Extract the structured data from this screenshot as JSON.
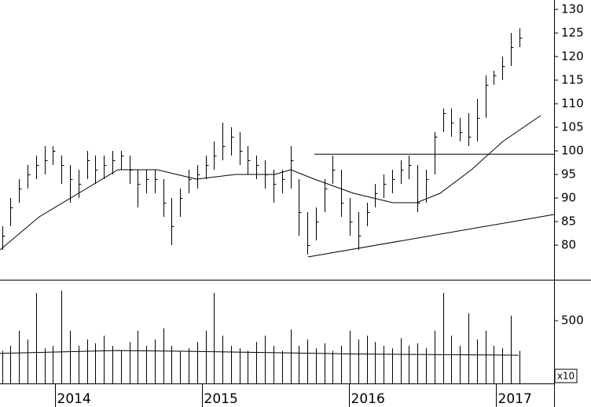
{
  "chart_data": {
    "type": "ohlc",
    "x": [
      2013.64,
      2013.698,
      2013.755,
      2013.813,
      2013.871,
      2013.929,
      2013.986,
      2014.044,
      2014.102,
      2014.159,
      2014.217,
      2014.275,
      2014.332,
      2014.39,
      2014.448,
      2014.506,
      2014.563,
      2014.621,
      2014.679,
      2014.736,
      2014.794,
      2014.852,
      2014.909,
      2014.967,
      2015.025,
      2015.082,
      2015.14,
      2015.198,
      2015.256,
      2015.313,
      2015.371,
      2015.429,
      2015.486,
      2015.544,
      2015.602,
      2015.659,
      2015.717,
      2015.775,
      2015.832,
      2015.89,
      2015.948,
      2016.006,
      2016.063,
      2016.121,
      2016.179,
      2016.236,
      2016.294,
      2016.352,
      2016.409,
      2016.467,
      2016.525,
      2016.582,
      2016.64,
      2016.698,
      2016.756,
      2016.813,
      2016.871,
      2016.929,
      2016.986,
      2017.044,
      2017.102,
      2017.159
    ],
    "high": [
      84,
      90,
      94,
      97,
      99,
      101,
      101,
      99,
      97,
      96,
      100,
      99,
      99,
      100,
      100,
      99,
      96,
      96,
      96,
      94,
      90,
      92,
      96,
      97,
      99,
      102,
      106,
      105,
      104,
      101,
      99,
      98,
      96,
      96,
      101,
      94,
      87,
      88,
      94,
      99,
      96,
      90,
      87,
      89,
      93,
      95,
      96,
      98,
      99,
      97,
      96,
      104,
      109,
      109,
      107,
      108,
      111,
      116,
      117,
      120,
      125,
      126
    ],
    "low": [
      79,
      84,
      89,
      92,
      94,
      95,
      97,
      93,
      89,
      90,
      94,
      93,
      94,
      95,
      96,
      93,
      88,
      91,
      91,
      86,
      80,
      86,
      91,
      92,
      94,
      96,
      98,
      99,
      97,
      95,
      94,
      92,
      89,
      91,
      92,
      82,
      78,
      81,
      87,
      93,
      86,
      82,
      79,
      84,
      88,
      90,
      91,
      93,
      94,
      87,
      89,
      95,
      104,
      103,
      102,
      101,
      102,
      107,
      114,
      115,
      118,
      122
    ],
    "close": [
      82,
      88,
      92,
      95,
      97,
      98,
      100,
      97,
      94,
      93,
      98,
      96,
      97,
      98,
      99,
      96,
      93,
      94,
      94,
      89,
      84,
      90,
      94,
      95,
      97,
      99,
      101,
      103,
      100,
      98,
      97,
      95,
      93,
      94,
      98,
      87,
      80,
      85,
      92,
      96,
      89,
      85,
      82,
      87,
      91,
      93,
      94,
      96,
      97,
      89,
      94,
      103,
      108,
      106,
      104,
      103,
      107,
      114,
      116,
      118,
      122,
      124
    ],
    "volume": [
      260,
      300,
      420,
      350,
      720,
      280,
      300,
      740,
      420,
      300,
      350,
      320,
      380,
      300,
      260,
      330,
      420,
      300,
      350,
      440,
      300,
      260,
      280,
      330,
      420,
      720,
      380,
      300,
      280,
      260,
      330,
      380,
      300,
      260,
      430,
      300,
      350,
      280,
      320,
      260,
      300,
      420,
      350,
      380,
      330,
      300,
      280,
      360,
      300,
      320,
      280,
      420,
      720,
      380,
      300,
      560,
      350,
      420,
      300,
      280,
      540,
      260
    ],
    "moving_average": {
      "x": [
        2013.626,
        2013.893,
        2014.16,
        2014.428,
        2014.695,
        2014.963,
        2015.23,
        2015.497,
        2015.604,
        2015.765,
        2016.032,
        2016.299,
        2016.46,
        2016.62,
        2016.834,
        2017.048,
        2017.305
      ],
      "values": [
        79,
        86,
        91,
        96,
        96,
        94,
        95,
        95,
        96,
        94,
        91,
        89,
        89,
        91,
        96,
        102,
        107.5
      ]
    },
    "volume_average": {
      "x": [
        2013.626,
        2014.428,
        2014.963,
        2015.497,
        2016.032,
        2016.567,
        2017.155
      ],
      "values": [
        240,
        262,
        255,
        245,
        235,
        230,
        225
      ]
    },
    "lines": [
      {
        "x": [
          2015.765,
          2017.396
        ],
        "values": [
          99.3,
          99.3
        ]
      },
      {
        "x": [
          2015.722,
          2017.396
        ],
        "values": [
          77.5,
          86.5
        ]
      }
    ],
    "xlim": [
      2013.626,
      2017.396
    ],
    "xticks": [
      2014,
      2015,
      2016,
      2017
    ],
    "ylim": [
      72.67,
      132
    ],
    "yticks": [
      80,
      85,
      90,
      95,
      100,
      105,
      110,
      115,
      120,
      125,
      130
    ],
    "volume_ylim": [
      0,
      820
    ],
    "volume_yticks": [
      500
    ],
    "volume_unit": "x10",
    "color": "#000000"
  }
}
